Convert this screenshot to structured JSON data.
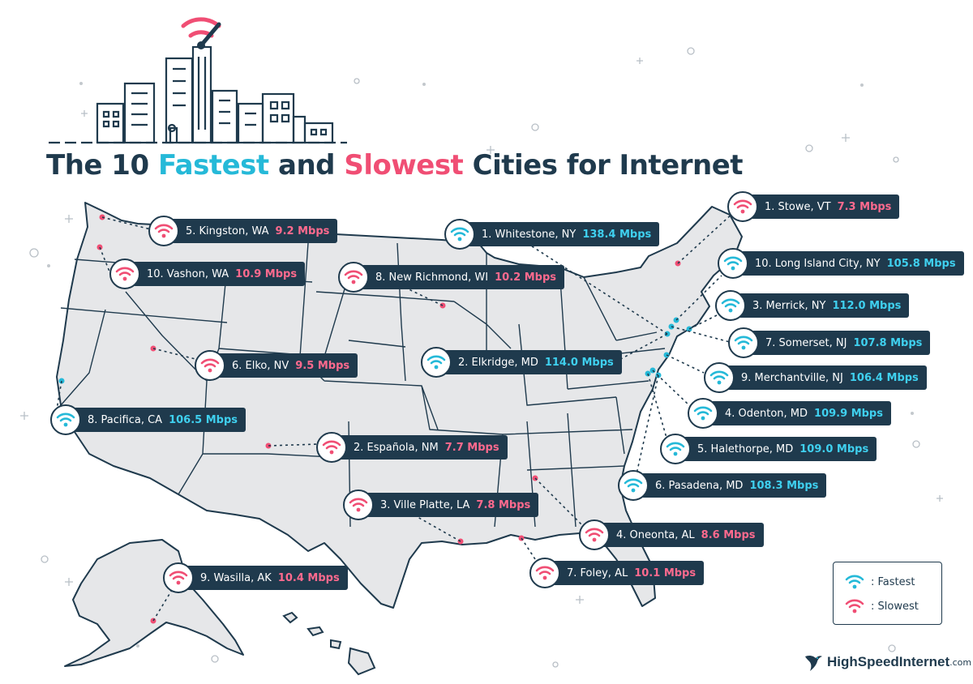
{
  "title": {
    "pre": "The 10 ",
    "fast": "Fastest",
    "mid": " and ",
    "slow": "Slowest",
    "post": " Cities for Internet"
  },
  "colors": {
    "fast": "#25b9d8",
    "slow": "#f04e74",
    "navy": "#1f3a4d",
    "land": "#e6e7e9"
  },
  "fastest": [
    {
      "label": "1. Whitestone, NY",
      "speed": "138.4 Mbps"
    },
    {
      "label": "2. Elkridge, MD",
      "speed": "114.0 Mbps"
    },
    {
      "label": "3. Merrick, NY",
      "speed": "112.0 Mbps"
    },
    {
      "label": "4. Odenton, MD",
      "speed": "109.9 Mbps"
    },
    {
      "label": "5. Halethorpe, MD",
      "speed": "109.0 Mbps"
    },
    {
      "label": "6. Pasadena, MD",
      "speed": "108.3 Mbps"
    },
    {
      "label": "7. Somerset, NJ",
      "speed": "107.8 Mbps"
    },
    {
      "label": "8. Pacifica, CA",
      "speed": "106.5 Mbps"
    },
    {
      "label": "9. Merchantville, NJ",
      "speed": "106.4 Mbps"
    },
    {
      "label": "10. Long Island City, NY",
      "speed": "105.8 Mbps"
    }
  ],
  "slowest": [
    {
      "label": "1. Stowe, VT",
      "speed": "7.3 Mbps"
    },
    {
      "label": "2. Española, NM",
      "speed": "7.7 Mbps"
    },
    {
      "label": "3. Ville Platte, LA",
      "speed": "7.8 Mbps"
    },
    {
      "label": "4. Oneonta, AL",
      "speed": "8.6 Mbps"
    },
    {
      "label": "5. Kingston, WA",
      "speed": "9.2 Mbps"
    },
    {
      "label": "6. Elko, NV",
      "speed": "9.5 Mbps"
    },
    {
      "label": "7. Foley, AL",
      "speed": "10.1 Mbps"
    },
    {
      "label": "8. New Richmond, WI",
      "speed": "10.2 Mbps"
    },
    {
      "label": "9. Wasilla, AK",
      "speed": "10.4 Mbps"
    },
    {
      "label": "10. Vashon, WA",
      "speed": "10.9 Mbps"
    }
  ],
  "legend": {
    "fast": ": Fastest",
    "slow": ": Slowest"
  },
  "brand": {
    "name": "HighSpeedInternet",
    "tld": ".com"
  }
}
